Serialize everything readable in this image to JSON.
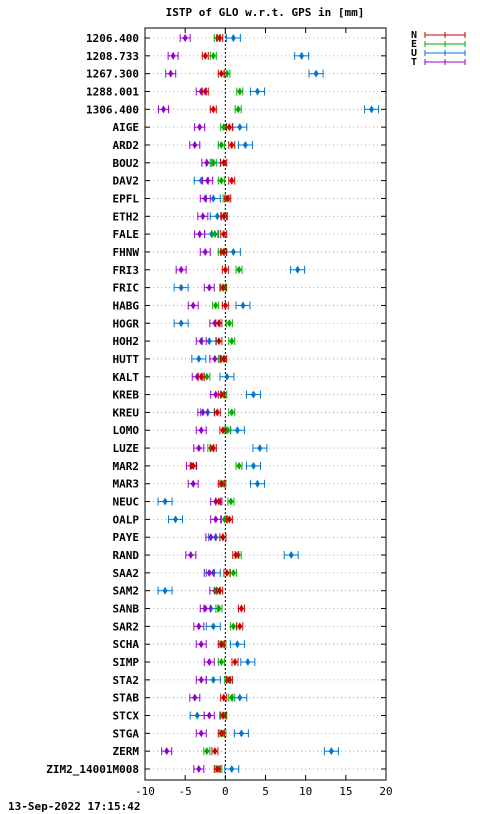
{
  "title": "ISTP of GLO w.r.t. GPS in [mm]",
  "footer": "13-Sep-2022 17:15:42",
  "chart_data": {
    "type": "scatter",
    "xlim": [
      -10,
      20
    ],
    "xticks": [
      -10,
      -5,
      0,
      5,
      10,
      15,
      20
    ],
    "grid": "horizontal dotted, vertical dashed at 0",
    "legend_position": "outside top-right",
    "colors": {
      "N": "#cc0000",
      "E": "#00aa00",
      "U": "#0077cc",
      "T": "#9900cc"
    },
    "series": [
      {
        "name": "N",
        "color": "#cc0000"
      },
      {
        "name": "E",
        "color": "#00aa00"
      },
      {
        "name": "U",
        "color": "#0077cc"
      },
      {
        "name": "T",
        "color": "#9900cc"
      }
    ],
    "stations": [
      {
        "name": "1206.400",
        "N": -0.7,
        "E": -1.0,
        "U": 1.0,
        "T": -5.0
      },
      {
        "name": "1208.733",
        "N": -2.5,
        "E": -1.5,
        "U": 9.5,
        "T": -6.5
      },
      {
        "name": "1267.300",
        "N": -0.5,
        "E": 0.2,
        "U": 11.3,
        "T": -6.8
      },
      {
        "name": "1288.001",
        "N": -2.5,
        "E": 1.8,
        "U": 4.0,
        "T": -3.0
      },
      {
        "name": "1306.400",
        "N": -1.5,
        "E": 1.6,
        "U": 18.2,
        "T": -7.7
      },
      {
        "name": "AIGE",
        "N": 0.5,
        "E": -0.2,
        "U": 1.8,
        "T": -3.2
      },
      {
        "name": "ARD2",
        "N": 0.8,
        "E": -0.5,
        "U": 2.5,
        "T": -3.8
      },
      {
        "name": "BOU2",
        "N": -0.2,
        "E": -1.5,
        "U": -1.5,
        "T": -2.3
      },
      {
        "name": "DAV2",
        "N": 0.8,
        "E": -0.5,
        "U": -3.0,
        "T": -2.2
      },
      {
        "name": "EPFL",
        "N": 0.3,
        "E": 0.1,
        "U": -1.5,
        "T": -2.5
      },
      {
        "name": "ETH2",
        "N": -0.2,
        "E": -0.1,
        "U": -1.0,
        "T": -2.8
      },
      {
        "name": "FALE",
        "N": -0.2,
        "E": -1.3,
        "U": -1.7,
        "T": -3.2
      },
      {
        "name": "FHNW",
        "N": -0.2,
        "E": -0.5,
        "U": 1.0,
        "T": -2.5
      },
      {
        "name": "FRI3",
        "N": 0.0,
        "E": 1.7,
        "U": 9.0,
        "T": -5.5
      },
      {
        "name": "FRIC",
        "N": -0.3,
        "E": -0.2,
        "U": -5.5,
        "T": -2.0
      },
      {
        "name": "HABG",
        "N": 0.0,
        "E": -1.2,
        "U": 2.2,
        "T": -4.0
      },
      {
        "name": "HOGR",
        "N": -0.8,
        "E": 0.5,
        "U": -5.5,
        "T": -1.3
      },
      {
        "name": "HOH2",
        "N": -0.8,
        "E": 0.8,
        "U": -2.0,
        "T": -3.0
      },
      {
        "name": "HUTT",
        "N": -0.2,
        "E": -0.5,
        "U": -3.3,
        "T": -1.3
      },
      {
        "name": "KALT",
        "N": -3.0,
        "E": -2.3,
        "U": 0.2,
        "T": -3.5
      },
      {
        "name": "KREB",
        "N": -0.5,
        "E": -0.2,
        "U": 3.5,
        "T": -1.2
      },
      {
        "name": "KREU",
        "N": -1.0,
        "E": 0.8,
        "U": -2.2,
        "T": -2.8
      },
      {
        "name": "LOMO",
        "N": -0.3,
        "E": 0.3,
        "U": 1.5,
        "T": -3.0
      },
      {
        "name": "LUZE",
        "N": -1.5,
        "E": -1.8,
        "U": 4.3,
        "T": -3.3
      },
      {
        "name": "MAR2",
        "N": -4.0,
        "E": 1.7,
        "U": 3.5,
        "T": -4.2
      },
      {
        "name": "MAR3",
        "N": -0.5,
        "E": -0.3,
        "U": 4.0,
        "T": -4.0
      },
      {
        "name": "NEUC",
        "N": -0.8,
        "E": 0.7,
        "U": -7.5,
        "T": -1.2
      },
      {
        "name": "OALP",
        "N": 0.5,
        "E": -0.1,
        "U": -6.2,
        "T": -1.2
      },
      {
        "name": "PAYE",
        "N": -0.3,
        "E": -0.3,
        "U": -1.2,
        "T": -1.8
      },
      {
        "name": "RAND",
        "N": 1.3,
        "E": 1.6,
        "U": 8.2,
        "T": -4.3
      },
      {
        "name": "SAA2",
        "N": 0.2,
        "E": 1.0,
        "U": -1.5,
        "T": -2.0
      },
      {
        "name": "SAM2",
        "N": -0.7,
        "E": -1.0,
        "U": -7.5,
        "T": -1.3
      },
      {
        "name": "SANB",
        "N": 2.0,
        "E": -0.8,
        "U": -1.8,
        "T": -2.5
      },
      {
        "name": "SAR2",
        "N": 1.8,
        "E": 1.0,
        "U": -1.5,
        "T": -3.3
      },
      {
        "name": "SCHA",
        "N": -0.5,
        "E": -0.3,
        "U": 1.5,
        "T": -3.0
      },
      {
        "name": "SIMP",
        "N": 1.2,
        "E": -0.5,
        "U": 2.8,
        "T": -2.0
      },
      {
        "name": "STA2",
        "N": 0.5,
        "E": 0.3,
        "U": -1.5,
        "T": -3.0
      },
      {
        "name": "STAB",
        "N": -0.2,
        "E": 0.8,
        "U": 1.8,
        "T": -3.8
      },
      {
        "name": "STCX",
        "N": -0.3,
        "E": -0.2,
        "U": -3.5,
        "T": -2.0
      },
      {
        "name": "STGA",
        "N": -0.5,
        "E": -0.3,
        "U": 2.0,
        "T": -3.0
      },
      {
        "name": "ZERM",
        "N": -1.3,
        "E": -2.3,
        "U": 13.2,
        "T": -7.3
      },
      {
        "name": "ZIM2_14001M008",
        "N": -1.0,
        "E": -0.8,
        "U": 0.8,
        "T": -3.3
      }
    ]
  }
}
